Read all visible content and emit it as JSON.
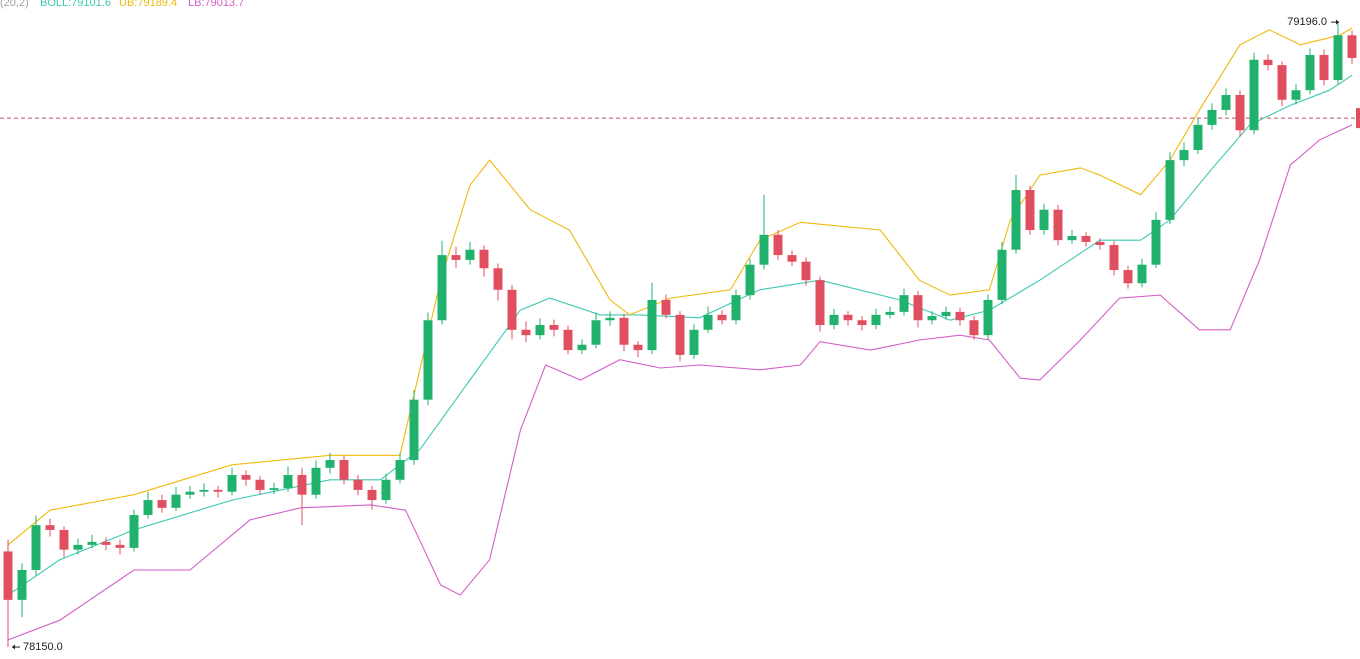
{
  "chart_data": {
    "type": "candlestick",
    "params": "(20,2)",
    "ylim": [
      78130,
      79233
    ],
    "up_color": "#20b26c",
    "down_color": "#e04f5f",
    "price_line": 79035.3,
    "max_marker": {
      "value": 79196.0,
      "label": "79196.0"
    },
    "min_marker": {
      "value": 78150.0,
      "label": "78150.0"
    },
    "candles": [
      [
        78310,
        78330,
        78150,
        78229
      ],
      [
        78229,
        78290,
        78200,
        78279
      ],
      [
        78279,
        78370,
        78270,
        78354
      ],
      [
        78354,
        78365,
        78335,
        78346
      ],
      [
        78346,
        78352,
        78300,
        78313
      ],
      [
        78313,
        78332,
        78305,
        78321
      ],
      [
        78321,
        78338,
        78315,
        78326
      ],
      [
        78326,
        78334,
        78312,
        78321
      ],
      [
        78321,
        78330,
        78305,
        78316
      ],
      [
        78316,
        78380,
        78310,
        78371
      ],
      [
        78371,
        78410,
        78365,
        78396
      ],
      [
        78396,
        78405,
        78375,
        78383
      ],
      [
        78383,
        78418,
        78378,
        78405
      ],
      [
        78405,
        78420,
        78398,
        78410
      ],
      [
        78410,
        78424,
        78402,
        78413
      ],
      [
        78413,
        78420,
        78400,
        78410
      ],
      [
        78410,
        78450,
        78404,
        78438
      ],
      [
        78438,
        78446,
        78420,
        78430
      ],
      [
        78430,
        78436,
        78405,
        78413
      ],
      [
        78413,
        78425,
        78406,
        78416
      ],
      [
        78416,
        78452,
        78410,
        78438
      ],
      [
        78438,
        78450,
        78354,
        78405
      ],
      [
        78405,
        78462,
        78398,
        78450
      ],
      [
        78450,
        78475,
        78440,
        78463
      ],
      [
        78463,
        78470,
        78422,
        78430
      ],
      [
        78430,
        78438,
        78404,
        78413
      ],
      [
        78413,
        78420,
        78380,
        78396
      ],
      [
        78396,
        78440,
        78390,
        78430
      ],
      [
        78430,
        78475,
        78424,
        78463
      ],
      [
        78463,
        78580,
        78455,
        78564
      ],
      [
        78564,
        78710,
        78555,
        78697
      ],
      [
        78697,
        78830,
        78690,
        78806
      ],
      [
        78806,
        78820,
        78785,
        78798
      ],
      [
        78798,
        78828,
        78790,
        78815
      ],
      [
        78815,
        78822,
        78770,
        78784
      ],
      [
        78784,
        78792,
        78730,
        78748
      ],
      [
        78748,
        78756,
        78665,
        78681
      ],
      [
        78681,
        78695,
        78660,
        78672
      ],
      [
        78672,
        78700,
        78665,
        78689
      ],
      [
        78689,
        78698,
        78670,
        78681
      ],
      [
        78681,
        78688,
        78640,
        78647
      ],
      [
        78647,
        78665,
        78640,
        78656
      ],
      [
        78656,
        78710,
        78650,
        78697
      ],
      [
        78697,
        78712,
        78688,
        78701
      ],
      [
        78701,
        78708,
        78645,
        78656
      ],
      [
        78656,
        78662,
        78635,
        78647
      ],
      [
        78647,
        78760,
        78640,
        78731
      ],
      [
        78731,
        78740,
        78700,
        78706
      ],
      [
        78706,
        78712,
        78628,
        78639
      ],
      [
        78639,
        78690,
        78632,
        78681
      ],
      [
        78681,
        78720,
        78676,
        78706
      ],
      [
        78706,
        78714,
        78690,
        78697
      ],
      [
        78697,
        78748,
        78690,
        78739
      ],
      [
        78739,
        78800,
        78732,
        78790
      ],
      [
        78790,
        78907,
        78782,
        78840
      ],
      [
        78840,
        78848,
        78798,
        78806
      ],
      [
        78806,
        78814,
        78788,
        78795
      ],
      [
        78795,
        78802,
        78755,
        78764
      ],
      [
        78764,
        78770,
        78678,
        78689
      ],
      [
        78689,
        78716,
        78682,
        78706
      ],
      [
        78706,
        78712,
        78688,
        78697
      ],
      [
        78697,
        78704,
        78680,
        78689
      ],
      [
        78689,
        78716,
        78682,
        78706
      ],
      [
        78706,
        78720,
        78700,
        78711
      ],
      [
        78711,
        78750,
        78705,
        78739
      ],
      [
        78739,
        78746,
        78685,
        78697
      ],
      [
        78697,
        78712,
        78690,
        78704
      ],
      [
        78704,
        78720,
        78698,
        78711
      ],
      [
        78711,
        78718,
        78688,
        78697
      ],
      [
        78697,
        78704,
        78664,
        78672
      ],
      [
        78672,
        78740,
        78665,
        78731
      ],
      [
        78731,
        78828,
        78724,
        78815
      ],
      [
        78815,
        78940,
        78808,
        78915
      ],
      [
        78915,
        78922,
        78840,
        78848
      ],
      [
        78848,
        78892,
        78840,
        78882
      ],
      [
        78882,
        78890,
        78822,
        78831
      ],
      [
        78831,
        78848,
        78825,
        78838
      ],
      [
        78838,
        78844,
        78820,
        78828
      ],
      [
        78828,
        78834,
        78815,
        78823
      ],
      [
        78823,
        78830,
        78772,
        78781
      ],
      [
        78781,
        78788,
        78750,
        78759
      ],
      [
        78759,
        78800,
        78752,
        78790
      ],
      [
        78790,
        78878,
        78784,
        78865
      ],
      [
        78865,
        78978,
        78858,
        78965
      ],
      [
        78965,
        78995,
        78955,
        78982
      ],
      [
        78982,
        79035,
        78975,
        79024
      ],
      [
        79024,
        79060,
        79016,
        79049
      ],
      [
        79049,
        79085,
        79040,
        79074
      ],
      [
        79074,
        79082,
        79005,
        79015
      ],
      [
        79015,
        79145,
        79008,
        79133
      ],
      [
        79133,
        79142,
        79115,
        79124
      ],
      [
        79124,
        79130,
        79055,
        79066
      ],
      [
        79066,
        79092,
        79058,
        79082
      ],
      [
        79082,
        79152,
        79075,
        79141
      ],
      [
        79141,
        79150,
        79090,
        79099
      ],
      [
        79099,
        79196,
        79092,
        79174
      ],
      [
        79174,
        79182,
        79126,
        79136
      ]
    ],
    "series": [
      {
        "name": "BOLL:79101.6",
        "color": "#3cc8b4",
        "x": [
          0,
          3.7,
          9,
          16,
          23,
          26.6,
          29.4,
          33,
          36.6,
          38.7,
          42.3,
          45.1,
          49.4,
          53.7,
          58,
          63.7,
          67.3,
          70.1,
          73.7,
          78,
          80.9,
          83,
          85.9,
          88.7,
          91.6,
          94.4,
          96
        ],
        "values": [
          78237,
          78296,
          78346,
          78396,
          78430,
          78430,
          78480,
          78597,
          78714,
          78734,
          78706,
          78706,
          78701,
          78748,
          78764,
          78731,
          78697,
          78714,
          78764,
          78831,
          78831,
          78865,
          78948,
          79024,
          79057,
          79082,
          79107
        ]
      },
      {
        "name": "UB:79189.4",
        "color": "#f0b90b",
        "x": [
          0,
          3,
          9,
          16,
          23,
          28,
          30.9,
          33,
          34.4,
          37.3,
          40.1,
          43,
          44.4,
          47.3,
          51.6,
          53.7,
          56.6,
          62.3,
          65.1,
          67.3,
          70.1,
          71.6,
          73.7,
          76.6,
          78,
          80.9,
          83,
          85.1,
          88,
          90.1,
          92.3,
          95.1,
          96
        ],
        "values": [
          78321,
          78379,
          78405,
          78455,
          78471,
          78471,
          78764,
          78923,
          78965,
          78882,
          78848,
          78731,
          78706,
          78734,
          78748,
          78831,
          78861,
          78848,
          78764,
          78739,
          78748,
          78865,
          78940,
          78952,
          78940,
          78907,
          78965,
          79049,
          79158,
          79183,
          79158,
          79174,
          79186
        ]
      },
      {
        "name": "LB:79013.7",
        "color": "#d35fc8",
        "x": [
          0,
          3.7,
          9,
          13,
          17.3,
          20.9,
          25.9,
          28.4,
          30.9,
          32.3,
          34.4,
          36.6,
          38.4,
          40.9,
          43.7,
          46.6,
          49.4,
          53.7,
          56.6,
          58,
          61.6,
          65.1,
          68,
          70.1,
          72.3,
          73.7,
          76.6,
          79.4,
          82.3,
          85.1,
          87.3,
          89.4,
          91.6,
          93.7,
          96
        ],
        "values": [
          78162,
          78195,
          78279,
          78279,
          78363,
          78383,
          78388,
          78379,
          78254,
          78237,
          78296,
          78513,
          78622,
          78597,
          78631,
          78617,
          78622,
          78614,
          78622,
          78661,
          78647,
          78664,
          78672,
          78664,
          78600,
          78597,
          78664,
          78734,
          78739,
          78681,
          78681,
          78798,
          78957,
          78999,
          79024
        ]
      }
    ]
  }
}
